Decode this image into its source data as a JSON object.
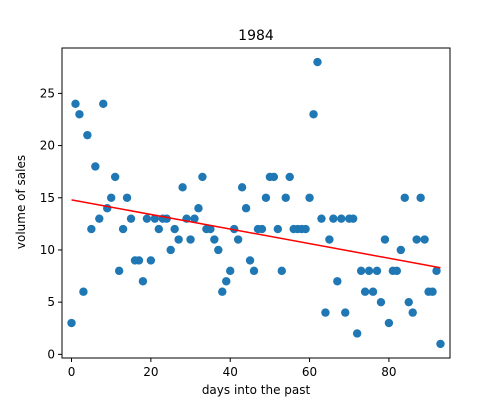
{
  "chart_data": {
    "type": "scatter",
    "title": "1984",
    "xlabel": "days into the past",
    "ylabel": "volume of sales",
    "xlim": [
      -2.4,
      95.4
    ],
    "ylim": [
      -0.35,
      29.35
    ],
    "xticks": [
      0,
      20,
      40,
      60,
      80
    ],
    "yticks": [
      0,
      5,
      10,
      15,
      20,
      25
    ],
    "grid": false,
    "colors": {
      "points": "#1f77b4",
      "trend": "#ff0000"
    },
    "series": [
      {
        "type": "scatter",
        "x": [
          0,
          1,
          2,
          3,
          4,
          5,
          6,
          7,
          8,
          9,
          10,
          11,
          12,
          13,
          14,
          15,
          16,
          17,
          18,
          19,
          20,
          21,
          22,
          23,
          24,
          25,
          26,
          27,
          28,
          29,
          30,
          31,
          32,
          33,
          34,
          35,
          36,
          37,
          38,
          39,
          40,
          41,
          42,
          43,
          44,
          45,
          46,
          47,
          48,
          49,
          50,
          51,
          52,
          53,
          54,
          55,
          56,
          57,
          58,
          59,
          60,
          61,
          62,
          63,
          64,
          65,
          66,
          67,
          68,
          69,
          70,
          71,
          72,
          73,
          74,
          75,
          76,
          77,
          78,
          79,
          80,
          81,
          82,
          83,
          84,
          85,
          86,
          87,
          88,
          89,
          90,
          91,
          92,
          93
        ],
        "y": [
          3,
          24,
          23,
          6,
          21,
          12,
          18,
          13,
          24,
          14,
          15,
          17,
          8,
          12,
          15,
          13,
          9,
          9,
          7,
          13,
          9,
          13,
          12,
          13,
          13,
          10,
          12,
          11,
          16,
          13,
          11,
          13,
          14,
          17,
          12,
          12,
          11,
          10,
          6,
          7,
          8,
          12,
          11,
          16,
          14,
          9,
          8,
          12,
          12,
          15,
          17,
          17,
          12,
          8,
          15,
          17,
          12,
          12,
          12,
          12,
          15,
          23,
          28,
          13,
          4,
          11,
          13,
          7,
          13,
          4,
          13,
          13,
          2,
          8,
          6,
          8,
          6,
          8,
          5,
          11,
          3,
          8,
          8,
          10,
          15,
          5,
          4,
          11,
          15,
          11,
          6,
          6,
          8,
          1
        ]
      },
      {
        "type": "line",
        "x": [
          0,
          93
        ],
        "y": [
          14.8,
          8.3
        ]
      }
    ]
  }
}
